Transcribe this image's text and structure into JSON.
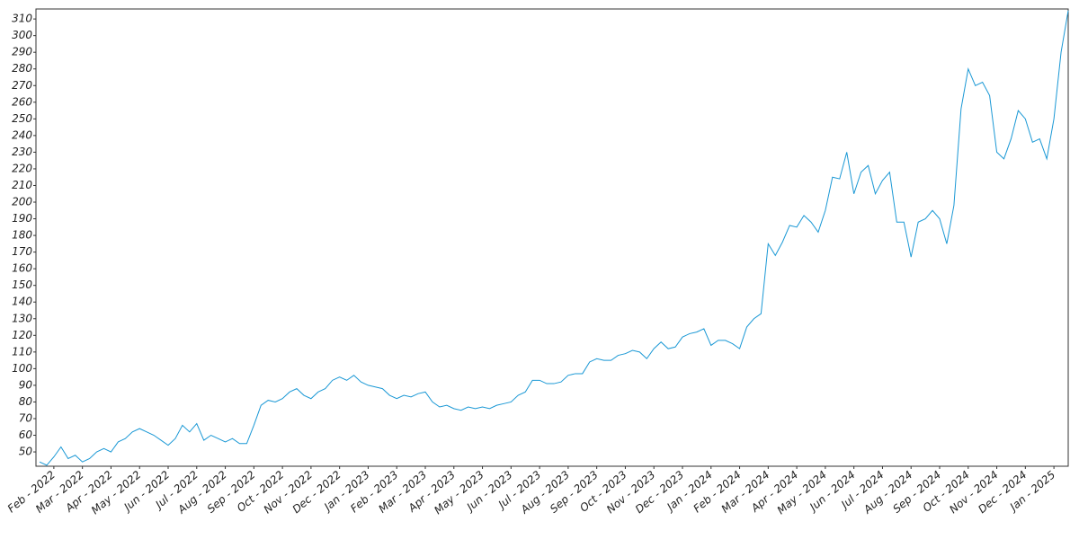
{
  "chart_data": {
    "type": "line",
    "x": [
      null,
      null,
      "Feb - 2022",
      null,
      null,
      null,
      "Mar - 2022",
      null,
      null,
      null,
      "Apr - 2022",
      null,
      null,
      null,
      "May - 2022",
      null,
      null,
      null,
      "Jun - 2022",
      null,
      null,
      null,
      "Jul - 2022",
      null,
      null,
      null,
      "Aug - 2022",
      null,
      null,
      null,
      "Sep - 2022",
      null,
      null,
      null,
      "Oct - 2022",
      null,
      null,
      null,
      "Nov - 2022",
      null,
      null,
      null,
      "Dec - 2022",
      null,
      null,
      null,
      "Jan - 2023",
      null,
      null,
      null,
      "Feb - 2023",
      null,
      null,
      null,
      "Mar - 2023",
      null,
      null,
      null,
      "Apr - 2023",
      null,
      null,
      null,
      "May - 2023",
      null,
      null,
      null,
      "Jun - 2023",
      null,
      null,
      null,
      "Jul - 2023",
      null,
      null,
      null,
      "Aug - 2023",
      null,
      null,
      null,
      "Sep - 2023",
      null,
      null,
      null,
      "Oct - 2023",
      null,
      null,
      null,
      "Nov - 2023",
      null,
      null,
      null,
      "Dec - 2023",
      null,
      null,
      null,
      "Jan - 2024",
      null,
      null,
      null,
      "Feb - 2024",
      null,
      null,
      null,
      "Mar - 2024",
      null,
      null,
      null,
      "Apr - 2024",
      null,
      null,
      null,
      "May - 2024",
      null,
      null,
      null,
      "Jun - 2024",
      null,
      null,
      null,
      "Jul - 2024",
      null,
      null,
      null,
      "Aug - 2024",
      null,
      null,
      null,
      "Sep - 2024",
      null,
      null,
      null,
      "Oct - 2024",
      null,
      null,
      null,
      "Nov - 2024",
      null,
      null,
      null,
      "Dec - 2024",
      null,
      null,
      null,
      "Jan - 2025",
      null,
      null
    ],
    "values": [
      44,
      42,
      47,
      53,
      46,
      48,
      44,
      46,
      50,
      52,
      50,
      56,
      58,
      62,
      64,
      62,
      60,
      57,
      54,
      58,
      66,
      62,
      67,
      57,
      60,
      58,
      56,
      58,
      55,
      55,
      66,
      78,
      81,
      80,
      82,
      86,
      88,
      84,
      82,
      86,
      88,
      93,
      95,
      93,
      96,
      92,
      90,
      89,
      88,
      84,
      82,
      84,
      83,
      85,
      86,
      80,
      77,
      78,
      76,
      75,
      77,
      76,
      77,
      76,
      78,
      79,
      80,
      84,
      86,
      93,
      93,
      91,
      91,
      92,
      96,
      97,
      97,
      104,
      106,
      105,
      105,
      108,
      109,
      111,
      110,
      106,
      112,
      116,
      112,
      113,
      119,
      121,
      122,
      124,
      114,
      117,
      117,
      115,
      112,
      125,
      130,
      133,
      175,
      168,
      176,
      186,
      185,
      192,
      188,
      182,
      195,
      215,
      214,
      230,
      205,
      218,
      222,
      205,
      213,
      218,
      188,
      188,
      167,
      188,
      190,
      195,
      190,
      175,
      198,
      256,
      280,
      270,
      272,
      264,
      230,
      226,
      238,
      255,
      250,
      236,
      238,
      226,
      250,
      290,
      315
    ],
    "color": "#1a98d5",
    "ylim": [
      41.4,
      316
    ],
    "yticks": [
      50,
      60,
      70,
      80,
      90,
      100,
      110,
      120,
      130,
      140,
      150,
      160,
      170,
      180,
      190,
      200,
      210,
      220,
      230,
      240,
      250,
      260,
      270,
      280,
      290,
      300,
      310
    ]
  }
}
